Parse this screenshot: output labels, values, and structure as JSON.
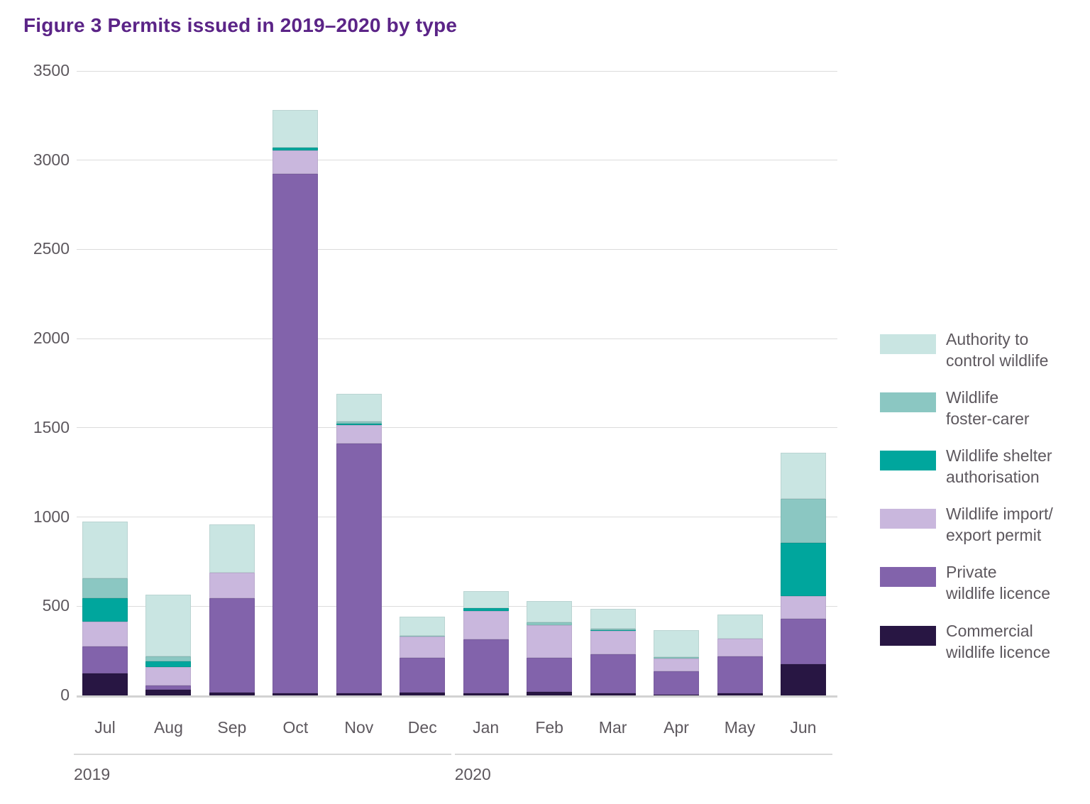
{
  "title": "Figure 3 Permits issued in 2019–2020 by type",
  "colors": {
    "title": "#5b2487",
    "axis_text": "#5d585e",
    "gridline": "#dcdcdc"
  },
  "chart_data": {
    "type": "bar",
    "stacked": true,
    "title": "Figure 3 Permits issued in 2019–2020 by type",
    "xlabel": "",
    "ylabel": "",
    "ylim": [
      0,
      3500
    ],
    "yticks": [
      0,
      500,
      1000,
      1500,
      2000,
      2500,
      3000,
      3500
    ],
    "grid": true,
    "legend_position": "right",
    "categories": [
      "Jul",
      "Aug",
      "Sep",
      "Oct",
      "Nov",
      "Dec",
      "Jan",
      "Feb",
      "Mar",
      "Apr",
      "May",
      "Jun"
    ],
    "year_groups": [
      {
        "label": "2019",
        "from_index": 0,
        "to_index": 5
      },
      {
        "label": "2020",
        "from_index": 6,
        "to_index": 11
      }
    ],
    "series": [
      {
        "name": "Commercial wildlife licence",
        "color": "#281643",
        "values": [
          125,
          30,
          15,
          10,
          10,
          15,
          10,
          20,
          10,
          5,
          10,
          175
        ]
      },
      {
        "name": "Private wildlife licence",
        "color": "#8263ab",
        "values": [
          150,
          25,
          530,
          2915,
          1400,
          195,
          305,
          190,
          220,
          130,
          210,
          255
        ]
      },
      {
        "name": "Wildlife import/export permit",
        "color": "#c9b7dd",
        "values": [
          140,
          105,
          145,
          130,
          105,
          120,
          160,
          185,
          130,
          70,
          100,
          125
        ]
      },
      {
        "name": "Wildlife shelter authorisation",
        "color": "#00a69d",
        "values": [
          130,
          30,
          0,
          15,
          10,
          0,
          15,
          0,
          5,
          0,
          0,
          300
        ]
      },
      {
        "name": "Wildlife foster-carer",
        "color": "#8bc7c2",
        "values": [
          110,
          30,
          0,
          0,
          10,
          5,
          0,
          15,
          10,
          10,
          0,
          245
        ]
      },
      {
        "name": "Authority to control wildlife",
        "color": "#c9e5e2",
        "values": [
          320,
          345,
          270,
          210,
          155,
          105,
          95,
          120,
          110,
          150,
          135,
          260
        ]
      }
    ],
    "legend_items": [
      {
        "series": "Authority to control wildlife",
        "color": "#c9e5e2",
        "lines": [
          "Authority to",
          "control wildlife"
        ]
      },
      {
        "series": "Wildlife foster-carer",
        "color": "#8bc7c2",
        "lines": [
          "Wildlife",
          "foster-carer"
        ]
      },
      {
        "series": "Wildlife shelter authorisation",
        "color": "#00a69d",
        "lines": [
          "Wildlife shelter",
          "authorisation"
        ]
      },
      {
        "series": "Wildlife import/export permit",
        "color": "#c9b7dd",
        "lines": [
          "Wildlife import/",
          "export permit"
        ]
      },
      {
        "series": "Private wildlife licence",
        "color": "#8263ab",
        "lines": [
          "Private",
          "wildlife licence"
        ]
      },
      {
        "series": "Commercial wildlife licence",
        "color": "#281643",
        "lines": [
          "Commercial",
          "wildlife licence"
        ]
      }
    ]
  }
}
